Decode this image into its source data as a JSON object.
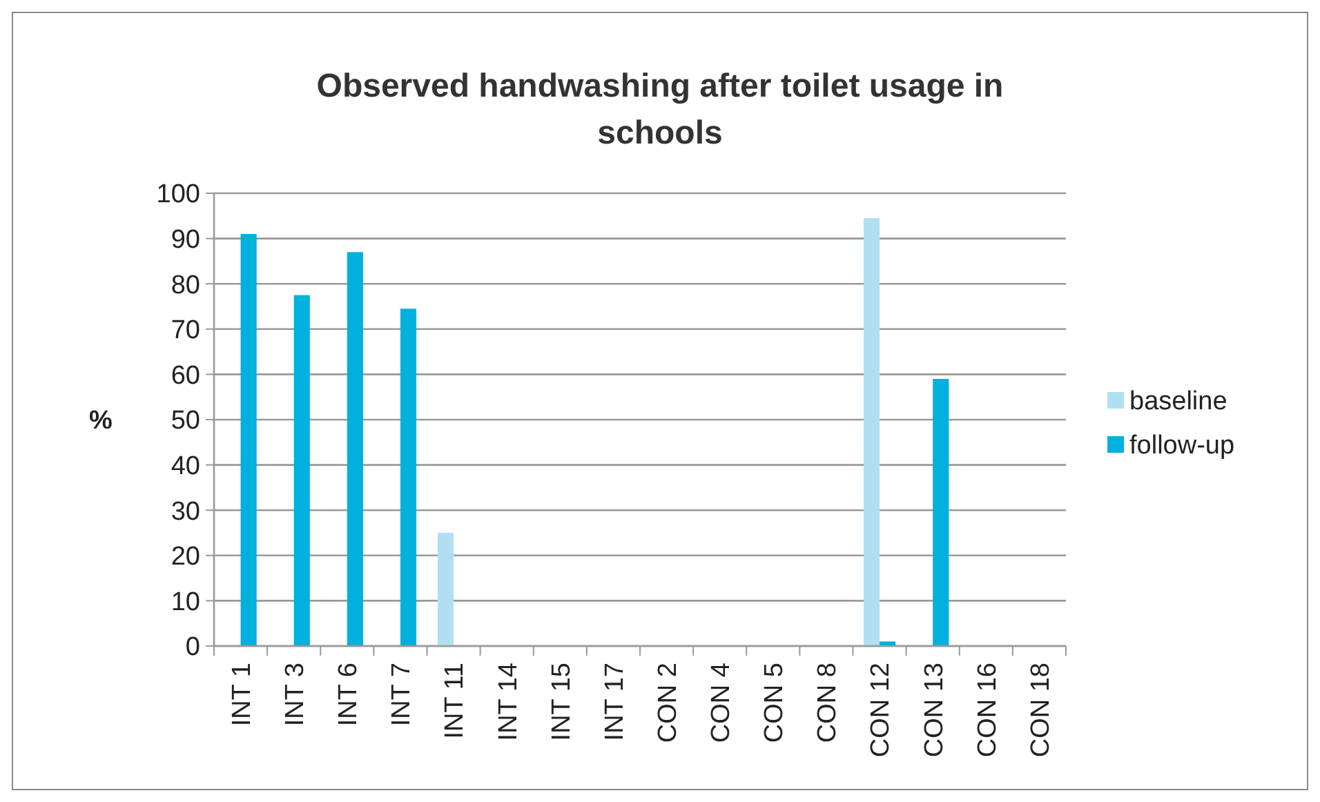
{
  "chart_data": {
    "type": "bar",
    "title": "Observed handwashing after toilet usage in schools",
    "ylabel": "%",
    "categories": [
      "INT 1",
      "INT 3",
      "INT 6",
      "INT 7",
      "INT 11",
      "INT 14",
      "INT 15",
      "INT 17",
      "CON 2",
      "CON 4",
      "CON 5",
      "CON 8",
      "CON 12",
      "CON 13",
      "CON 16",
      "CON 18"
    ],
    "series": [
      {
        "name": "baseline",
        "color": "#b0dff3",
        "values": [
          null,
          null,
          null,
          null,
          25,
          null,
          null,
          null,
          null,
          null,
          null,
          null,
          94.5,
          null,
          null,
          null
        ]
      },
      {
        "name": "follow-up",
        "color": "#00b0dd",
        "values": [
          91,
          77.5,
          87,
          74.5,
          null,
          null,
          null,
          null,
          null,
          null,
          null,
          null,
          1,
          59,
          null,
          null
        ]
      }
    ],
    "ylim": [
      0,
      100
    ],
    "yticks": [
      0,
      10,
      20,
      30,
      40,
      50,
      60,
      70,
      80,
      90,
      100
    ],
    "grid": "y",
    "legend": "right"
  }
}
